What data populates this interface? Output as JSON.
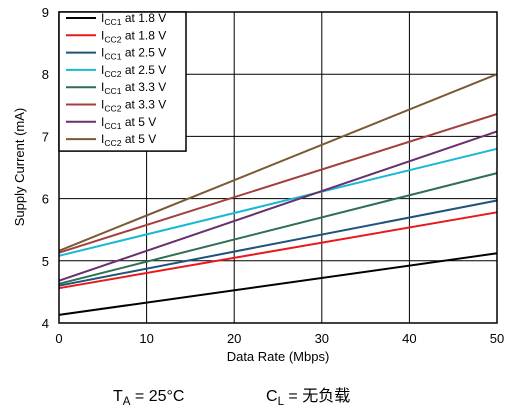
{
  "chart_data": {
    "type": "line",
    "xlabel": "Data Rate (Mbps)",
    "ylabel": "Supply Current (mA)",
    "xlim": [
      0,
      50
    ],
    "ylim": [
      4,
      9
    ],
    "xticks": [
      0,
      10,
      20,
      30,
      40,
      50
    ],
    "yticks": [
      4,
      5,
      6,
      7,
      8,
      9
    ],
    "grid": true,
    "legend_position": "top-left",
    "series": [
      {
        "name": "ICC1 at 1.8 V",
        "subscript": "CC1",
        "color": "#000000",
        "x": [
          0,
          50
        ],
        "y": [
          4.13,
          5.12
        ]
      },
      {
        "name": "ICC2 at 1.8 V",
        "subscript": "CC2",
        "color": "#e8181c",
        "x": [
          0,
          50
        ],
        "y": [
          4.56,
          5.78
        ]
      },
      {
        "name": "ICC1 at 2.5 V",
        "subscript": "CC1",
        "color": "#1d5479",
        "x": [
          0,
          50
        ],
        "y": [
          4.6,
          5.97
        ]
      },
      {
        "name": "ICC2 at 2.5 V",
        "subscript": "CC2",
        "color": "#19b8d4",
        "x": [
          0,
          50
        ],
        "y": [
          5.08,
          6.8
        ]
      },
      {
        "name": "ICC1 at 3.3 V",
        "subscript": "CC1",
        "color": "#2f6f53",
        "x": [
          0,
          50
        ],
        "y": [
          4.63,
          6.41
        ]
      },
      {
        "name": "ICC2 at 3.3 V",
        "subscript": "CC2",
        "color": "#a2403f",
        "x": [
          0,
          50
        ],
        "y": [
          5.13,
          7.36
        ]
      },
      {
        "name": "ICC1 at 5 V",
        "subscript": "CC1",
        "color": "#6a2f6e",
        "x": [
          0,
          50
        ],
        "y": [
          4.68,
          7.08
        ]
      },
      {
        "name": "ICC2 at 5 V",
        "subscript": "CC2",
        "color": "#7a5a34",
        "x": [
          0,
          50
        ],
        "y": [
          5.16,
          8.0
        ]
      }
    ]
  },
  "conditions": [
    {
      "text": "TA = 25°C",
      "subscript": "A"
    },
    {
      "text": "CL = 无负载",
      "subscript": "L"
    }
  ]
}
